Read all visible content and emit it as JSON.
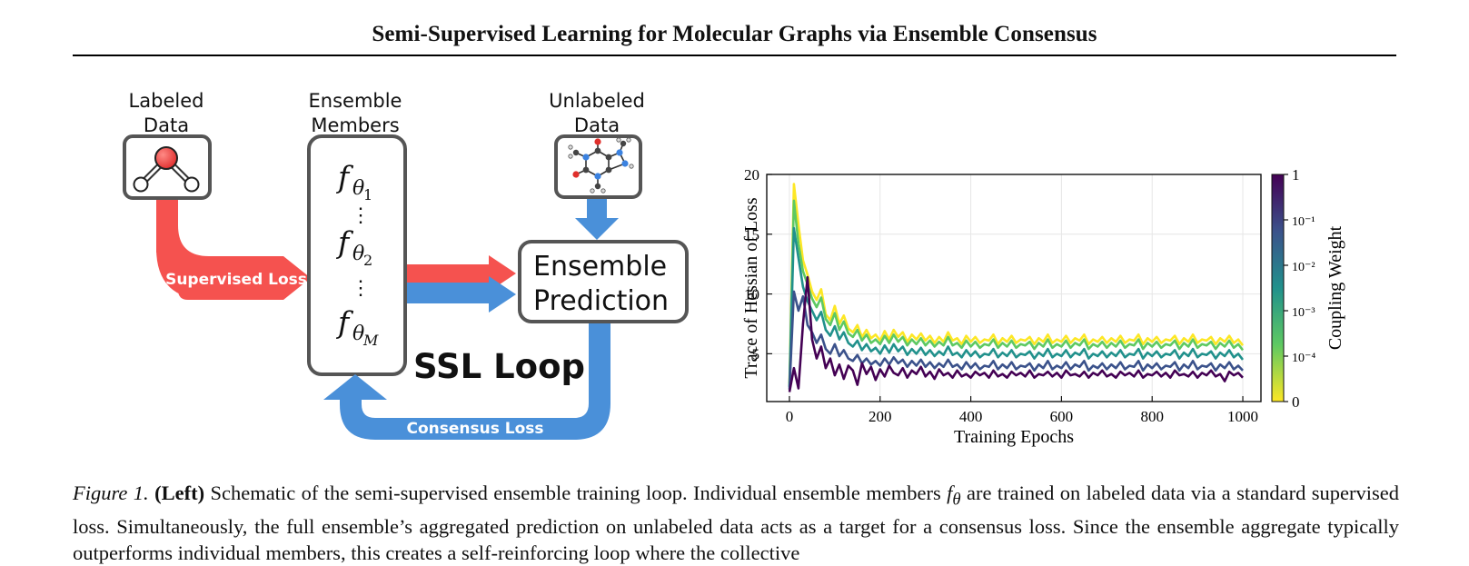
{
  "paper": {
    "title": "Semi-Supervised Learning for Molecular Graphs via Ensemble Consensus"
  },
  "schematic": {
    "labeled_data_label": [
      "Labeled",
      "Data"
    ],
    "ensemble_members_label": [
      "Ensemble",
      "Members"
    ],
    "unlabeled_data_label": [
      "Unlabeled",
      "Data"
    ],
    "members": [
      "f",
      "θ",
      "1",
      "2",
      "M"
    ],
    "vdots": "⋮",
    "prediction_label": [
      "Ensemble",
      "Prediction"
    ],
    "supervised_loss_label": "Supervised Loss",
    "consensus_loss_label": "Consensus Loss",
    "loop_label": "SSL Loop",
    "colors": {
      "supervised": "#f5524f",
      "consensus": "#4a90d9",
      "box": "#555555"
    }
  },
  "chart_data": {
    "type": "line",
    "xlabel": "Training Epochs",
    "ylabel": "Trace of Hessian of Loss",
    "xlim": [
      -50,
      1040
    ],
    "ylim": [
      1,
      20
    ],
    "xticks": [
      0,
      200,
      400,
      600,
      800,
      1000
    ],
    "yticks": [
      5,
      10,
      15,
      20
    ],
    "grid": true,
    "colorbar": {
      "label": "Coupling Weight",
      "ticks": [
        "1",
        "10⁻¹",
        "10⁻²",
        "10⁻³",
        "10⁻⁴",
        "0"
      ],
      "colormap": "viridis",
      "colors": [
        "#fde725",
        "#5ec962",
        "#21918c",
        "#3b528b",
        "#440154"
      ]
    },
    "series": [
      {
        "color": "#fde725",
        "values": [
          2.5,
          19.2,
          15.8,
          12.8,
          11.6,
          10.2,
          9.5,
          10.4,
          8.3,
          7.8,
          9.0,
          7.5,
          8.2,
          7.1,
          6.8,
          7.4,
          6.4,
          7.0,
          6.3,
          6.6,
          6.1,
          6.9,
          6.2,
          7.0,
          6.4,
          6.8,
          6.0,
          6.6,
          6.2,
          6.7,
          6.1,
          6.5,
          5.9,
          6.4,
          6.0,
          6.8,
          6.1,
          6.3,
          5.8,
          6.5,
          6.0,
          6.4,
          5.9,
          6.2,
          6.1,
          6.6,
          5.8,
          6.3,
          6.0,
          6.5,
          5.9,
          6.2,
          6.1,
          6.4,
          5.8,
          6.3,
          6.0,
          6.6,
          5.9,
          6.2,
          6.0,
          6.5,
          5.9,
          6.3,
          6.1,
          6.6,
          5.8,
          6.2,
          6.0,
          6.4,
          5.9,
          6.3,
          6.0,
          6.5,
          5.9,
          6.2,
          6.1,
          6.6,
          5.8,
          6.3,
          6.0,
          6.4,
          5.9,
          6.2,
          6.1,
          6.5,
          5.8,
          6.3,
          6.0,
          6.6,
          5.9,
          6.2,
          6.1,
          6.4,
          5.8,
          6.3,
          6.0,
          6.5,
          5.9,
          6.2,
          5.7
        ]
      },
      {
        "color": "#5ec962",
        "values": [
          2.3,
          17.8,
          14.2,
          11.9,
          10.8,
          9.6,
          8.9,
          9.7,
          7.9,
          7.4,
          8.4,
          7.0,
          7.7,
          6.7,
          6.4,
          7.0,
          6.1,
          6.6,
          5.9,
          6.2,
          5.8,
          6.5,
          5.9,
          6.6,
          6.0,
          6.4,
          5.7,
          6.2,
          5.8,
          6.3,
          5.7,
          6.1,
          5.6,
          6.0,
          5.7,
          6.4,
          5.7,
          5.9,
          5.5,
          6.1,
          5.6,
          6.0,
          5.5,
          5.8,
          5.7,
          6.2,
          5.5,
          5.9,
          5.6,
          6.1,
          5.5,
          5.8,
          5.7,
          6.0,
          5.4,
          5.9,
          5.6,
          6.2,
          5.5,
          5.8,
          5.6,
          6.1,
          5.5,
          5.9,
          5.7,
          6.2,
          5.4,
          5.8,
          5.6,
          6.0,
          5.5,
          5.9,
          5.6,
          6.1,
          5.5,
          5.8,
          5.7,
          6.2,
          5.4,
          5.9,
          5.6,
          6.0,
          5.5,
          5.8,
          5.7,
          6.1,
          5.4,
          5.9,
          5.6,
          6.2,
          5.5,
          5.8,
          5.7,
          6.0,
          5.4,
          5.9,
          5.6,
          6.1,
          5.5,
          5.8,
          5.3
        ]
      },
      {
        "color": "#21918c",
        "values": [
          2.2,
          15.5,
          13.0,
          10.6,
          9.4,
          8.6,
          7.8,
          8.5,
          7.0,
          6.5,
          7.3,
          6.2,
          6.8,
          5.9,
          5.6,
          6.1,
          5.3,
          5.8,
          5.2,
          5.5,
          5.0,
          5.7,
          5.1,
          5.8,
          5.2,
          5.6,
          4.9,
          5.4,
          5.0,
          5.5,
          4.9,
          5.3,
          4.8,
          5.2,
          4.9,
          5.6,
          4.9,
          5.1,
          4.7,
          5.3,
          4.8,
          5.2,
          4.7,
          5.0,
          4.9,
          5.4,
          4.7,
          5.1,
          4.8,
          5.3,
          4.7,
          5.0,
          4.9,
          5.2,
          4.6,
          5.1,
          4.8,
          5.4,
          4.7,
          5.0,
          4.8,
          5.3,
          4.7,
          5.1,
          4.9,
          5.4,
          4.6,
          5.0,
          4.8,
          5.2,
          4.7,
          5.1,
          4.8,
          5.3,
          4.7,
          5.0,
          4.9,
          5.4,
          4.6,
          5.1,
          4.8,
          5.2,
          4.7,
          5.0,
          4.9,
          5.3,
          4.6,
          5.1,
          4.8,
          5.4,
          4.7,
          5.0,
          4.9,
          5.2,
          4.6,
          5.1,
          4.8,
          5.3,
          4.7,
          5.0,
          4.5
        ]
      },
      {
        "color": "#3b528b",
        "values": [
          2.0,
          10.2,
          8.6,
          9.8,
          7.4,
          6.8,
          5.9,
          6.6,
          5.4,
          5.0,
          5.8,
          4.8,
          5.3,
          4.6,
          4.4,
          4.9,
          4.2,
          4.6,
          4.1,
          4.4,
          4.0,
          4.6,
          4.1,
          4.7,
          4.2,
          4.5,
          3.9,
          4.4,
          4.0,
          4.5,
          3.9,
          4.3,
          3.8,
          4.2,
          3.9,
          4.5,
          3.9,
          4.1,
          3.7,
          4.3,
          3.8,
          4.2,
          3.7,
          4.0,
          3.9,
          4.4,
          3.7,
          4.1,
          3.8,
          4.3,
          3.7,
          4.0,
          3.9,
          4.2,
          3.6,
          4.1,
          3.8,
          4.4,
          3.7,
          4.0,
          3.8,
          4.3,
          3.7,
          4.1,
          3.9,
          4.4,
          3.6,
          4.0,
          3.8,
          4.2,
          3.7,
          4.1,
          3.8,
          4.3,
          3.7,
          4.0,
          3.9,
          4.4,
          3.6,
          4.1,
          3.8,
          4.2,
          3.7,
          4.0,
          3.9,
          4.3,
          3.6,
          4.1,
          3.8,
          4.4,
          3.7,
          4.0,
          3.9,
          4.2,
          3.6,
          4.1,
          3.8,
          4.3,
          3.7,
          4.0,
          3.6
        ]
      },
      {
        "color": "#440154",
        "values": [
          1.8,
          3.8,
          2.1,
          7.5,
          11.4,
          6.2,
          4.6,
          5.6,
          3.8,
          4.6,
          3.2,
          4.1,
          2.9,
          4.0,
          3.6,
          2.4,
          4.2,
          3.3,
          3.9,
          2.8,
          3.7,
          3.1,
          4.0,
          3.4,
          3.2,
          3.8,
          3.0,
          3.6,
          3.3,
          3.9,
          3.1,
          3.5,
          2.9,
          3.7,
          3.2,
          3.4,
          3.0,
          3.6,
          3.1,
          3.3,
          3.0,
          3.5,
          3.2,
          3.4,
          3.0,
          3.6,
          3.1,
          3.3,
          3.0,
          3.5,
          3.2,
          3.4,
          3.1,
          3.6,
          3.0,
          3.3,
          3.2,
          3.5,
          3.1,
          3.4,
          3.0,
          3.6,
          3.2,
          3.3,
          3.1,
          3.5,
          3.0,
          3.4,
          3.2,
          3.6,
          3.1,
          3.3,
          3.0,
          3.5,
          3.2,
          3.4,
          3.1,
          3.6,
          3.0,
          3.3,
          3.2,
          3.5,
          3.1,
          3.4,
          3.0,
          3.6,
          3.2,
          3.3,
          3.1,
          3.5,
          3.0,
          3.4,
          3.2,
          3.6,
          3.1,
          3.3,
          2.7,
          3.5,
          3.2,
          3.4,
          3.0
        ]
      }
    ]
  },
  "caption": {
    "figure_label": "Figure 1.",
    "left_label": "(Left)",
    "text_1": " Schematic of the semi-supervised ensemble training loop. Individual ensemble members ",
    "symbol_f": "f",
    "symbol_theta": "θ",
    "text_2": " are trained on labeled data via a standard supervised loss. Simultaneously, the full ensemble’s aggregated prediction on unlabeled data acts as a target for a consensus loss. Since the ensemble aggregate typically outperforms individual members, this creates a self-reinforcing loop where the collective"
  }
}
